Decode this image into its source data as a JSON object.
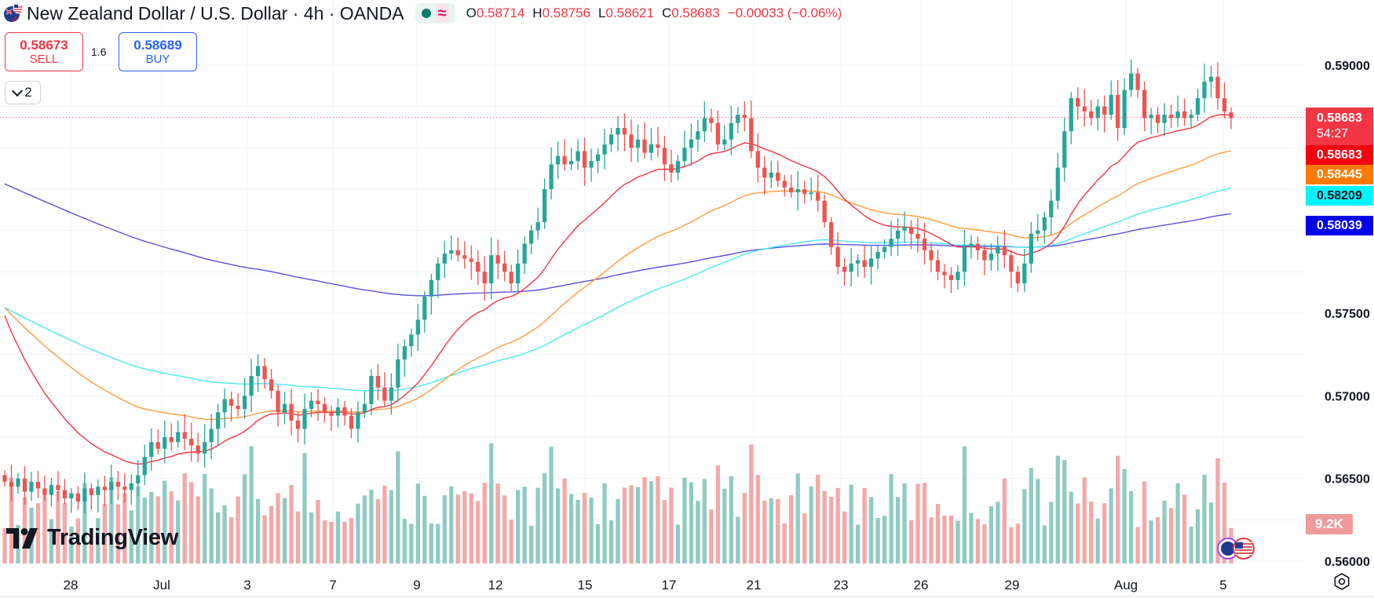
{
  "header": {
    "title": "New Zealand Dollar / U.S. Dollar · 4h · OANDA",
    "flag_icon": "nzd-usd-flag-icon",
    "indicator_icon": "wave-icon",
    "ohlc": [
      {
        "key": "O",
        "value": "0.58714"
      },
      {
        "key": "H",
        "value": "0.58756"
      },
      {
        "key": "L",
        "value": "0.58621"
      },
      {
        "key": "C",
        "value": "0.58683"
      }
    ],
    "change": "−0.00033 (−0.06%)"
  },
  "trade": {
    "sell_price": "0.58673",
    "sell_label": "SELL",
    "spread": "1.6",
    "buy_price": "0.58689",
    "buy_label": "BUY"
  },
  "indicators_toggle": {
    "count": "2",
    "icon": "chevron-down-icon"
  },
  "logo": {
    "text": "TradingView",
    "icon": "tradingview-logo-icon"
  },
  "price_axis": {
    "labels": [
      "0.59000",
      "0.57500",
      "0.57000",
      "0.56500",
      "0.56000"
    ],
    "current": {
      "price": "0.58683",
      "countdown": "54:27",
      "color": "#f23645"
    },
    "ma_tags": [
      {
        "value": "0.58683",
        "color": "#f7000f"
      },
      {
        "value": "0.58445",
        "color": "#ff7a00"
      },
      {
        "value": "0.58209",
        "color": "#00f5ff"
      },
      {
        "value": "0.58039",
        "color": "#0000f0"
      }
    ],
    "volume_tag": "9.2K"
  },
  "time_axis": {
    "labels": [
      "28",
      "Jul",
      "3",
      "7",
      "9",
      "12",
      "15",
      "17",
      "21",
      "23",
      "26",
      "29",
      "Aug",
      "5"
    ]
  },
  "colors": {
    "up": "#26a69a",
    "down": "#ef5350",
    "vol_up": "#8fcbc3",
    "vol_down": "#f4a8a8",
    "ma_fast": "#f23645",
    "ma_mid": "#ff9c3f",
    "ma_slow": "#4ee7f0",
    "ma_long": "#5b4fe0"
  },
  "chart_data": {
    "type": "candlestick",
    "symbol": "NZD/USD",
    "interval": "4h",
    "ylim": [
      0.5595,
      0.5915
    ],
    "grid": true,
    "x_labels": [
      "28",
      "Jul",
      "3",
      "7",
      "9",
      "12",
      "15",
      "17",
      "21",
      "23",
      "26",
      "29",
      "Aug",
      "5"
    ],
    "candle_closes": [
      0.5648,
      0.5645,
      0.565,
      0.5642,
      0.5648,
      0.5644,
      0.564,
      0.5646,
      0.5643,
      0.5638,
      0.5641,
      0.5636,
      0.5644,
      0.564,
      0.5645,
      0.5643,
      0.5648,
      0.5645,
      0.5643,
      0.5647,
      0.5652,
      0.5663,
      0.5672,
      0.5668,
      0.5675,
      0.5672,
      0.5678,
      0.5674,
      0.567,
      0.5665,
      0.5672,
      0.568,
      0.569,
      0.5698,
      0.5694,
      0.5692,
      0.57,
      0.5712,
      0.5718,
      0.571,
      0.5703,
      0.569,
      0.5695,
      0.5685,
      0.568,
      0.5692,
      0.5697,
      0.5695,
      0.569,
      0.5688,
      0.5693,
      0.5688,
      0.568,
      0.569,
      0.5695,
      0.5712,
      0.5705,
      0.5697,
      0.5705,
      0.5722,
      0.573,
      0.5737,
      0.5746,
      0.576,
      0.577,
      0.578,
      0.5786,
      0.5788,
      0.5785,
      0.5783,
      0.5781,
      0.5775,
      0.5768,
      0.5785,
      0.578,
      0.5775,
      0.5768,
      0.578,
      0.5792,
      0.58,
      0.5805,
      0.5825,
      0.584,
      0.5845,
      0.584,
      0.5842,
      0.5848,
      0.5838,
      0.5842,
      0.5846,
      0.5852,
      0.5858,
      0.5862,
      0.5858,
      0.585,
      0.5855,
      0.5847,
      0.5852,
      0.585,
      0.584,
      0.5835,
      0.5842,
      0.585,
      0.5855,
      0.586,
      0.5868,
      0.5865,
      0.5852,
      0.5855,
      0.5865,
      0.587,
      0.5868,
      0.5848,
      0.5838,
      0.5832,
      0.5835,
      0.583,
      0.5826,
      0.5823,
      0.5825,
      0.5822,
      0.5823,
      0.5818,
      0.5805,
      0.579,
      0.5778,
      0.5775,
      0.578,
      0.5782,
      0.5778,
      0.5783,
      0.5787,
      0.579,
      0.5795,
      0.58,
      0.5802,
      0.5798,
      0.5795,
      0.5788,
      0.5782,
      0.5775,
      0.5773,
      0.577,
      0.5775,
      0.579,
      0.5792,
      0.5788,
      0.5782,
      0.5786,
      0.579,
      0.5785,
      0.5775,
      0.5768,
      0.578,
      0.5798,
      0.58,
      0.5808,
      0.5818,
      0.5838,
      0.586,
      0.588,
      0.5875,
      0.5872,
      0.5868,
      0.5875,
      0.587,
      0.5882,
      0.5862,
      0.5885,
      0.5895,
      0.5885,
      0.5868,
      0.587,
      0.5865,
      0.587,
      0.5868,
      0.5872,
      0.5868,
      0.587,
      0.588,
      0.589,
      0.5893,
      0.588,
      0.5872,
      0.5868
    ],
    "last_candle": {
      "open": 0.58714,
      "high": 0.58756,
      "low": 0.58621,
      "close": 0.58683
    },
    "moving_averages": [
      {
        "value": 0.58683,
        "color": "#f23645"
      },
      {
        "value": 0.58445,
        "color": "#ff9c3f"
      },
      {
        "value": 0.58209,
        "color": "#4ee7f0"
      },
      {
        "value": 0.58039,
        "color": "#5b4fe0"
      }
    ],
    "volume_last": "9.2K"
  }
}
